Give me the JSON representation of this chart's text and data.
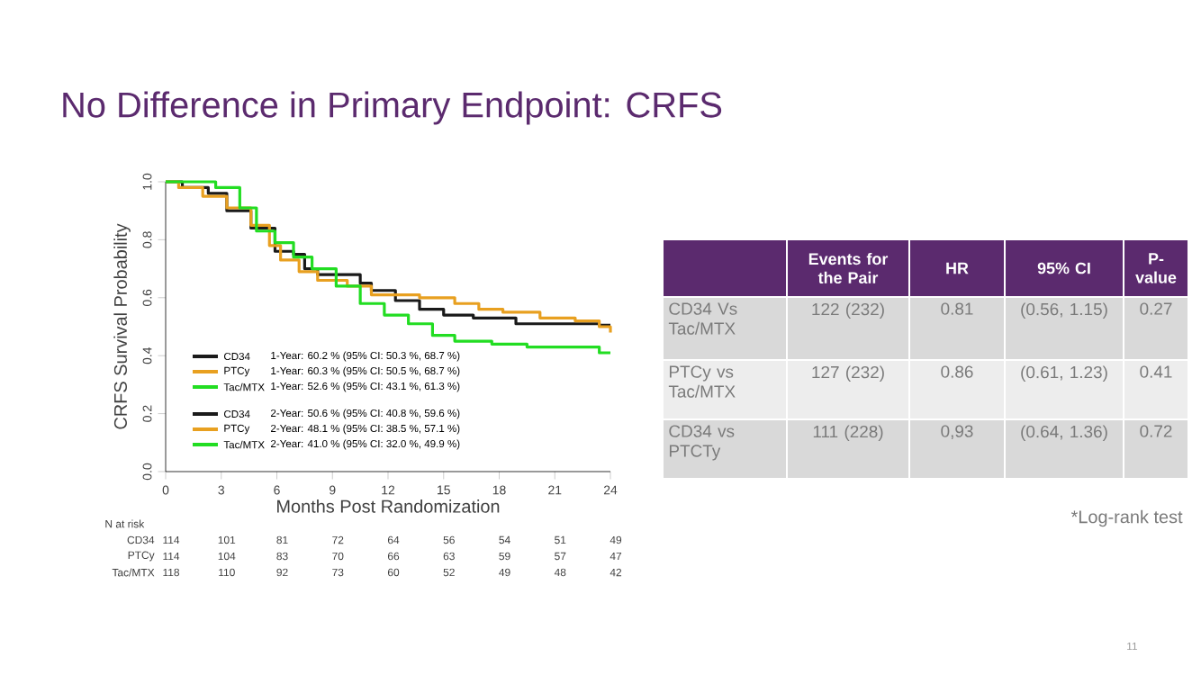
{
  "chart_data": {
    "type": "step",
    "title": "No Difference in Primary Endpoint: CRFS",
    "xlabel": "Months Post Randomization",
    "ylabel": "CRFS Survival Probability",
    "xlim": [
      0,
      24
    ],
    "xticks": [
      0,
      3,
      6,
      9,
      12,
      15,
      18,
      21,
      24
    ],
    "ylim": [
      0,
      1
    ],
    "yticks": [
      {
        "value": 0,
        "label": "0.0"
      },
      {
        "value": 0.2,
        "label": "0.2"
      },
      {
        "value": 0.4,
        "label": "0.4"
      },
      {
        "value": 0.6,
        "label": "0.6"
      },
      {
        "value": 0.8,
        "label": "0.8"
      },
      {
        "value": 1,
        "label": "1.0"
      }
    ],
    "grid": false,
    "legend": "bottom left",
    "marker": "none",
    "line_style": "solid",
    "series": [
      {
        "name": "CD34",
        "color": "#1a1a1a",
        "x": [
          0,
          0.9,
          2.3,
          3.3,
          4.6,
          5.9,
          6.9,
          7.5,
          8.2,
          9.2,
          10.5,
          11.1,
          12.4,
          13.7,
          15,
          16.6,
          18.9,
          22.1,
          23.4,
          24
        ],
        "values": [
          1,
          0.98,
          0.96,
          0.9,
          0.84,
          0.76,
          0.75,
          0.7,
          0.68,
          0.68,
          0.65,
          0.625,
          0.59,
          0.56,
          0.54,
          0.53,
          0.51,
          0.51,
          0.505,
          0.505
        ]
      },
      {
        "name": "PTCy",
        "color": "#e8a020",
        "x": [
          0,
          0.7,
          2,
          3.3,
          4.6,
          5.6,
          6.2,
          7.2,
          8.2,
          9.8,
          11.1,
          13.7,
          15.6,
          16.9,
          18.2,
          20.2,
          22.1,
          23.4,
          24
        ],
        "values": [
          1,
          0.98,
          0.95,
          0.91,
          0.85,
          0.78,
          0.73,
          0.69,
          0.66,
          0.64,
          0.61,
          0.6,
          0.58,
          0.56,
          0.55,
          0.53,
          0.52,
          0.5,
          0.48
        ]
      },
      {
        "name": "Tac/MTX",
        "color": "#22dd22",
        "x": [
          0,
          1.7,
          2.7,
          4,
          4.9,
          5.9,
          6.9,
          7.9,
          9.2,
          10.5,
          11.8,
          13.1,
          14.4,
          15.6,
          17.6,
          19.5,
          22.1,
          23.4,
          24
        ],
        "values": [
          1,
          1,
          0.98,
          0.91,
          0.83,
          0.79,
          0.74,
          0.7,
          0.64,
          0.58,
          0.54,
          0.51,
          0.47,
          0.45,
          0.44,
          0.43,
          0.43,
          0.41,
          0.41
        ]
      }
    ],
    "annotations": [
      "1-Year: 60.2 % (95% CI: 50.3 %, 68.7 %)",
      "1-Year: 60.3 % (95% CI: 50.5 %, 68.7 %)",
      "1-Year: 52.6 % (95% CI: 43.1 %, 61.3 %)",
      "2-Year: 50.6 % (95% CI: 40.8 %, 59.6 %)",
      "2-Year: 48.1 % (95% CI: 38.5 %, 57.1 %)",
      "2-Year: 41.0 % (95% CI: 32.0 %, 49.9 %)",
      "N at risk",
      "114",
      "101",
      "81",
      "72",
      "64",
      "56",
      "54",
      "51",
      "49",
      "114",
      "104",
      "83",
      "70",
      "66",
      "63",
      "59",
      "57",
      "47",
      "118",
      "110",
      "92",
      "73",
      "60",
      "52",
      "49",
      "48",
      "42",
      "Events for the Pair",
      "HR",
      "95% CI",
      "P-value",
      "CD34 Vs Tac/MTX",
      "122 (232)",
      "0.81",
      "(0.56, 1.15)",
      "0.27",
      "PTCy vs Tac/MTX",
      "127 (232)",
      "0.86",
      "(0.61, 1.23)",
      "0.41",
      "CD34 vs PTCTy",
      "111 (228)",
      "0,93",
      "(0.64, 1.36)",
      "0.72",
      "*Log-rank test",
      "11"
    ]
  }
}
